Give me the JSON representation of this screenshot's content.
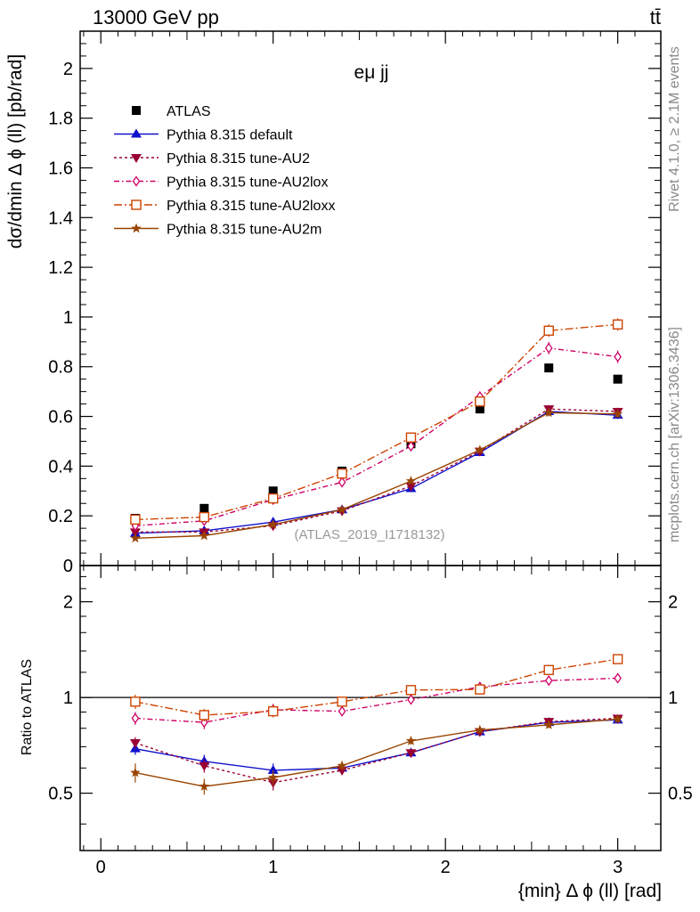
{
  "header": {
    "energy_label": "13000 GeV pp",
    "process_label": "tt̄"
  },
  "side_labels": {
    "rivet": "Rivet 4.1.0, ≥ 2.1M events",
    "mcplots": "mcplots.cern.ch [arXiv:1306.3436]"
  },
  "chart_data": [
    {
      "type": "scatter",
      "panel": "main",
      "title": "eμ jj",
      "watermark": "(ATLAS_2019_I1718132)",
      "xlabel": "",
      "ylabel": "dσ/dmin Δ ϕ (ll) [pb/rad]",
      "xlim": [
        -0.12,
        3.25
      ],
      "ylim": [
        0,
        2.15
      ],
      "yticks": [
        0,
        0.2,
        0.4,
        0.6,
        0.8,
        1,
        1.2,
        1.4,
        1.6,
        1.8,
        2
      ],
      "ytick_labels": [
        "0",
        "0.2",
        "0.4",
        "0.6",
        "0.8",
        "1",
        "1.2",
        "1.4",
        "1.6",
        "1.8",
        "2"
      ],
      "legend_position": "top-left",
      "x": [
        0.2,
        0.6,
        1.0,
        1.4,
        1.8,
        2.2,
        2.6,
        3.0
      ],
      "series": [
        {
          "name": "ATLAS",
          "key": "atlas",
          "color": "#000000",
          "marker": "square",
          "line": "none",
          "values": [
            0.19,
            0.23,
            0.3,
            0.38,
            0.49,
            0.63,
            0.795,
            0.75
          ],
          "errors": [
            0.01,
            0.01,
            0.01,
            0.01,
            0.01,
            0.01,
            0.01,
            0.01
          ]
        },
        {
          "name": "Pythia 8.315 default",
          "key": "default",
          "color": "#1111cc",
          "marker": "triangle-up",
          "line": "solid",
          "values": [
            0.13,
            0.14,
            0.175,
            0.225,
            0.31,
            0.455,
            0.62,
            0.605
          ],
          "errors": [
            0.01,
            0.01,
            0.01,
            0.01,
            0.01,
            0.012,
            0.015,
            0.015
          ]
        },
        {
          "name": "Pythia 8.315 tune-AU2",
          "key": "au2",
          "color": "#990033",
          "marker": "triangle-down",
          "line": "dotted",
          "values": [
            0.135,
            0.135,
            0.16,
            0.22,
            0.32,
            0.46,
            0.63,
            0.62
          ],
          "errors": [
            0.01,
            0.01,
            0.01,
            0.01,
            0.01,
            0.012,
            0.015,
            0.015
          ]
        },
        {
          "name": "Pythia 8.315 tune-AU2lox",
          "key": "au2lox",
          "color": "#cc0066",
          "marker": "diamond-open",
          "line": "dashdot",
          "values": [
            0.16,
            0.18,
            0.265,
            0.335,
            0.48,
            0.68,
            0.875,
            0.84
          ],
          "errors": [
            0.01,
            0.012,
            0.015,
            0.015,
            0.02,
            0.02,
            0.025,
            0.025
          ]
        },
        {
          "name": "Pythia 8.315 tune-AU2loxx",
          "key": "au2loxx",
          "color": "#cc4400",
          "marker": "square-open",
          "line": "longdashdot",
          "values": [
            0.185,
            0.195,
            0.27,
            0.37,
            0.515,
            0.66,
            0.945,
            0.97
          ],
          "errors": [
            0.01,
            0.012,
            0.015,
            0.015,
            0.02,
            0.02,
            0.025,
            0.025
          ]
        },
        {
          "name": "Pythia 8.315 tune-AU2m",
          "key": "au2m",
          "color": "#994400",
          "marker": "star",
          "line": "solid",
          "values": [
            0.11,
            0.12,
            0.165,
            0.225,
            0.34,
            0.465,
            0.615,
            0.61
          ],
          "errors": [
            0.01,
            0.01,
            0.01,
            0.01,
            0.01,
            0.012,
            0.015,
            0.015
          ]
        }
      ]
    },
    {
      "type": "scatter",
      "panel": "ratio",
      "xlabel": "{min} Δ ϕ (ll) [rad]",
      "ylabel": "Ratio to ATLAS",
      "xlim": [
        -0.12,
        3.25
      ],
      "ylim": [
        0.33,
        2.6
      ],
      "yscale": "log",
      "xticks": [
        0,
        1,
        2,
        3
      ],
      "xtick_labels": [
        "0",
        "1",
        "2",
        "3"
      ],
      "yticks": [
        0.5,
        1,
        2
      ],
      "ytick_labels": [
        "0.5",
        "1",
        "2"
      ],
      "reference_line": 1,
      "x": [
        0.2,
        0.6,
        1.0,
        1.4,
        1.8,
        2.2,
        2.6,
        3.0
      ],
      "series": [
        {
          "name": "Pythia 8.315 default",
          "key": "default",
          "color": "#1111cc",
          "marker": "triangle-up",
          "line": "solid",
          "values": [
            0.69,
            0.63,
            0.59,
            0.6,
            0.67,
            0.78,
            0.835,
            0.85
          ],
          "errors": [
            0.03,
            0.03,
            0.03,
            0.02,
            0.02,
            0.02,
            0.02,
            0.02
          ]
        },
        {
          "name": "Pythia 8.315 tune-AU2",
          "key": "au2",
          "color": "#990033",
          "marker": "triangle-down",
          "line": "dotted",
          "values": [
            0.72,
            0.61,
            0.54,
            0.59,
            0.67,
            0.78,
            0.84,
            0.86
          ],
          "errors": [
            0.03,
            0.03,
            0.03,
            0.02,
            0.02,
            0.02,
            0.02,
            0.02
          ]
        },
        {
          "name": "Pythia 8.315 tune-AU2lox",
          "key": "au2lox",
          "color": "#cc0066",
          "marker": "diamond-open",
          "line": "dashdot",
          "values": [
            0.86,
            0.835,
            0.915,
            0.905,
            0.985,
            1.08,
            1.13,
            1.15
          ],
          "errors": [
            0.04,
            0.04,
            0.04,
            0.03,
            0.03,
            0.03,
            0.03,
            0.03
          ]
        },
        {
          "name": "Pythia 8.315 tune-AU2loxx",
          "key": "au2loxx",
          "color": "#cc4400",
          "marker": "square-open",
          "line": "longdashdot",
          "values": [
            0.97,
            0.88,
            0.905,
            0.97,
            1.055,
            1.06,
            1.22,
            1.32
          ],
          "errors": [
            0.05,
            0.04,
            0.04,
            0.03,
            0.03,
            0.03,
            0.03,
            0.03
          ]
        },
        {
          "name": "Pythia 8.315 tune-AU2m",
          "key": "au2m",
          "color": "#994400",
          "marker": "star",
          "line": "solid",
          "values": [
            0.58,
            0.525,
            0.56,
            0.61,
            0.73,
            0.79,
            0.82,
            0.855
          ],
          "errors": [
            0.04,
            0.03,
            0.03,
            0.02,
            0.02,
            0.02,
            0.02,
            0.02
          ]
        }
      ]
    }
  ]
}
